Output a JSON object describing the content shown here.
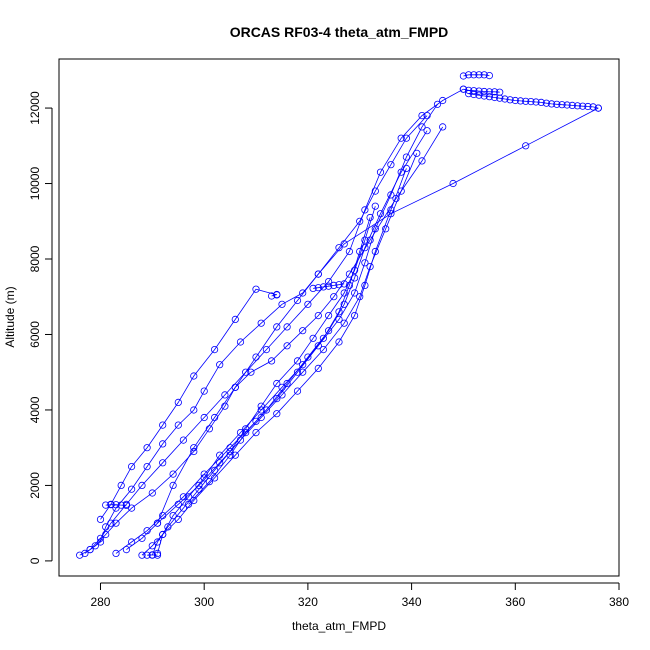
{
  "chart_data": {
    "type": "scatter",
    "title": "ORCAS RF03-4 theta_atm_FMPD",
    "xlabel": "theta_atm_FMPD",
    "ylabel": "Altitude (m)",
    "xlim": [
      272,
      380
    ],
    "ylim": [
      -400,
      13300
    ],
    "x_ticks": [
      280,
      300,
      320,
      340,
      360,
      380
    ],
    "y_ticks": [
      0,
      2000,
      4000,
      6000,
      8000,
      10000,
      12000
    ],
    "grid": false,
    "legend": "none",
    "series_color": "#0000ff",
    "marker": "open-circle",
    "connected": true,
    "series": [
      {
        "x": [
          276,
          278,
          280,
          282,
          285,
          288,
          292,
          296,
          300,
          304,
          308,
          312,
          316,
          320,
          324,
          328,
          331,
          334,
          338,
          342,
          346,
          350
        ],
        "y": [
          150,
          300,
          600,
          1000,
          1500,
          2000,
          2600,
          3200,
          3800,
          4400,
          5000,
          5600,
          6200,
          6800,
          7400,
          8200,
          9300,
          10300,
          11200,
          11800,
          12200,
          12500
        ]
      },
      {
        "x": [
          350,
          351,
          352,
          353,
          354,
          355
        ],
        "y": [
          12850,
          12880,
          12880,
          12880,
          12880,
          12860
        ]
      },
      {
        "x": [
          351,
          352,
          353,
          354,
          355,
          356,
          357,
          358,
          359,
          360,
          361,
          362,
          363,
          364,
          365,
          366,
          367,
          368,
          369,
          370,
          371,
          372,
          373,
          374,
          375,
          376
        ],
        "y": [
          12380,
          12360,
          12340,
          12320,
          12300,
          12280,
          12260,
          12240,
          12220,
          12200,
          12190,
          12180,
          12170,
          12160,
          12150,
          12130,
          12110,
          12100,
          12090,
          12080,
          12070,
          12060,
          12050,
          12040,
          12030,
          12000
        ]
      },
      {
        "x": [
          350,
          351,
          352,
          353,
          354,
          355,
          356,
          357
        ],
        "y": [
          12500,
          12470,
          12460,
          12450,
          12440,
          12430,
          12430,
          12420
        ]
      },
      {
        "x": [
          376,
          362,
          348,
          336,
          327,
          322,
          318,
          314,
          310,
          306,
          302,
          298,
          294,
          291
        ],
        "y": [
          12000,
          11000,
          10000,
          9200,
          8400,
          7600,
          6900,
          6200,
          5400,
          4600,
          3800,
          3000,
          2000,
          1000
        ]
      },
      {
        "x": [
          321,
          322,
          323,
          324,
          325,
          326,
          327
        ],
        "y": [
          7220,
          7240,
          7260,
          7280,
          7300,
          7320,
          7340
        ]
      },
      {
        "x": [
          277,
          279,
          281,
          283,
          286,
          290,
          294,
          298,
          301,
          304,
          306,
          309,
          313,
          316,
          319,
          322,
          325,
          328,
          332,
          337,
          342,
          346
        ],
        "y": [
          200,
          400,
          700,
          1000,
          1400,
          1800,
          2300,
          2900,
          3500,
          4100,
          4600,
          5000,
          5300,
          5700,
          6100,
          6500,
          7000,
          7600,
          8500,
          9600,
          10600,
          11500
        ]
      },
      {
        "x": [
          278,
          280,
          281,
          283,
          286,
          289,
          292,
          295,
          298,
          300,
          303,
          307,
          311,
          315,
          319,
          322,
          326,
          330,
          333,
          336,
          339,
          343
        ],
        "y": [
          300,
          500,
          900,
          1400,
          1900,
          2500,
          3100,
          3600,
          4000,
          4500,
          5200,
          5800,
          6300,
          6800,
          7100,
          7600,
          8300,
          9000,
          9800,
          10500,
          11200,
          11800
        ]
      },
      {
        "x": [
          281,
          282,
          283,
          284,
          285
        ],
        "y": [
          1480,
          1490,
          1490,
          1480,
          1470
        ]
      },
      {
        "x": [
          283,
          286,
          289,
          292,
          296,
          300,
          305,
          310,
          314,
          318,
          322,
          326,
          329,
          331,
          333,
          336,
          339,
          342,
          345
        ],
        "y": [
          200,
          500,
          800,
          1200,
          1700,
          2300,
          3000,
          3700,
          4300,
          5000,
          5700,
          6400,
          7100,
          7900,
          8800,
          9700,
          10700,
          11500,
          12100
        ]
      },
      {
        "x": [
          285,
          288,
          291,
          295,
          299,
          303,
          307,
          311,
          315,
          319,
          323,
          327,
          330,
          332,
          335,
          338,
          341
        ],
        "y": [
          300,
          600,
          1000,
          1500,
          2000,
          2600,
          3200,
          3800,
          4400,
          5000,
          5600,
          6300,
          7000,
          7800,
          8800,
          9800,
          10800
        ]
      },
      {
        "x": [
          288,
          290,
          292,
          295,
          298,
          302,
          306,
          310,
          314,
          318,
          322,
          326,
          329,
          331,
          333,
          336,
          339
        ],
        "y": [
          150,
          400,
          700,
          1100,
          1600,
          2200,
          2800,
          3400,
          3900,
          4500,
          5100,
          5800,
          6500,
          7300,
          8200,
          9300,
          10400
        ]
      },
      {
        "x": [
          290,
          291,
          293,
          296,
          299,
          302,
          305,
          308,
          311,
          314,
          318,
          321,
          324,
          327,
          329,
          331,
          333
        ],
        "y": [
          150,
          500,
          900,
          1400,
          1900,
          2400,
          2900,
          3500,
          4100,
          4700,
          5300,
          5900,
          6500,
          7100,
          7700,
          8500,
          9400
        ]
      },
      {
        "x": [
          291,
          292,
          294,
          297,
          300,
          303,
          307,
          311,
          315,
          319,
          323,
          326,
          328,
          330,
          332
        ],
        "y": [
          200,
          700,
          1200,
          1700,
          2200,
          2800,
          3400,
          4000,
          4600,
          5200,
          5900,
          6600,
          7300,
          8200,
          9100
        ]
      },
      {
        "x": [
          289,
          290,
          291
        ],
        "y": [
          150,
          160,
          150
        ]
      },
      {
        "x": [
          297,
          301,
          305,
          308,
          312,
          316,
          320,
          324,
          327,
          329,
          331,
          334,
          338,
          343
        ],
        "y": [
          1500,
          2100,
          2800,
          3400,
          4000,
          4700,
          5400,
          6100,
          6800,
          7500,
          8300,
          9200,
          10300,
          11400
        ]
      },
      {
        "x": [
          280,
          282,
          284,
          286,
          289,
          292,
          295,
          298,
          302,
          306,
          310,
          314
        ],
        "y": [
          1100,
          1500,
          2000,
          2500,
          3000,
          3600,
          4200,
          4900,
          5600,
          6400,
          7200,
          7050
        ]
      },
      {
        "x": [
          313,
          314
        ],
        "y": [
          7020,
          7060
        ]
      }
    ]
  }
}
